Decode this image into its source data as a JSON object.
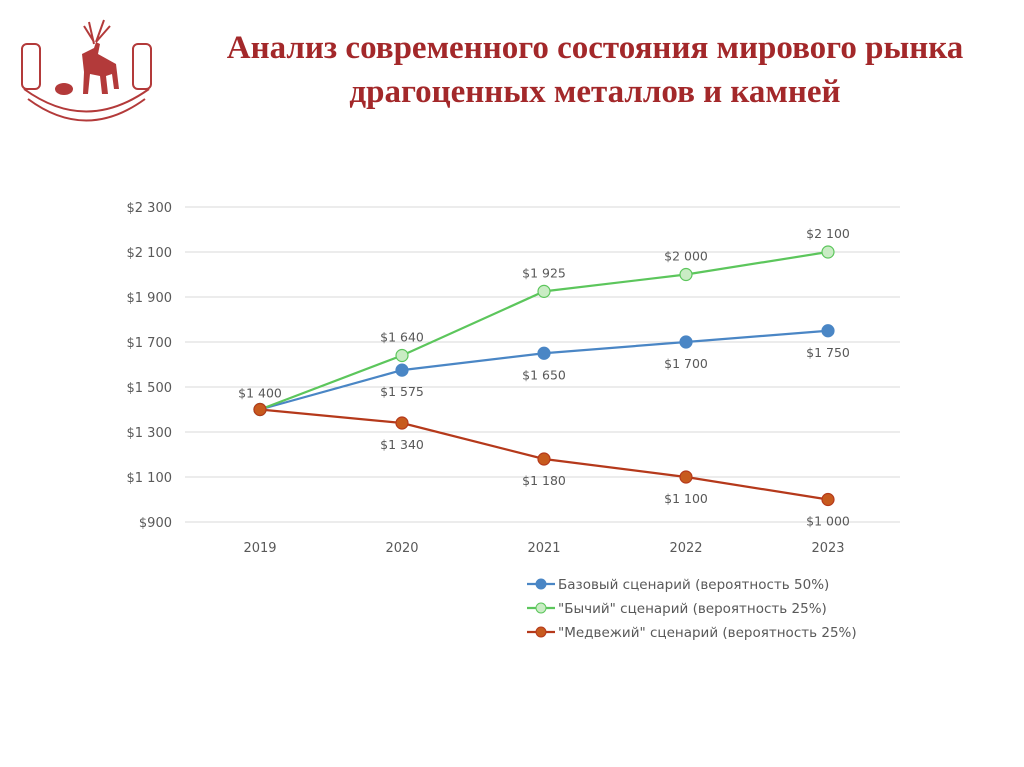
{
  "title": "Анализ современного состояния мирового рынка драгоценных металлов и камней",
  "logo": {
    "icon": "deer-emblem-icon",
    "color": "#b33a3a"
  },
  "chart_data": {
    "type": "line",
    "title": "",
    "xlabel": "",
    "ylabel": "",
    "categories": [
      "2019",
      "2020",
      "2021",
      "2022",
      "2023"
    ],
    "ylim": [
      900,
      2300
    ],
    "yticks": [
      900,
      1100,
      1300,
      1500,
      1700,
      1900,
      2100,
      2300
    ],
    "ytick_labels": [
      "$900",
      "$1 100",
      "$1 300",
      "$1 500",
      "$1 700",
      "$1 900",
      "$2 100",
      "$2 300"
    ],
    "grid": true,
    "legend_position": "bottom-right",
    "series": [
      {
        "name": "Базовый сценарий (вероятность 50%)",
        "color": "#4a86c5",
        "marker_fill": "#4a86c5",
        "values": [
          1400,
          1575,
          1650,
          1700,
          1750
        ],
        "labels": [
          "$1 400",
          "$1 575",
          "$1 650",
          "$1 700",
          "$1 750"
        ],
        "label_position": "below"
      },
      {
        "name": "\"Бычий\" сценарий (вероятность 25%)",
        "color": "#5cc65c",
        "marker_fill": "#c9ecc4",
        "values": [
          1400,
          1640,
          1925,
          2000,
          2100
        ],
        "labels": [
          "$1 400",
          "$1 640",
          "$1 925",
          "$2 000",
          "$2 100"
        ],
        "label_position": "above"
      },
      {
        "name": "\"Медвежий\" сценарий (вероятность 25%)",
        "color": "#b5391b",
        "marker_fill": "#c75a1e",
        "values": [
          1400,
          1340,
          1180,
          1100,
          1000
        ],
        "labels": [
          "$1 400",
          "$1 340",
          "$1 180",
          "$1 100",
          "$1 000"
        ],
        "label_position": "below"
      }
    ]
  }
}
